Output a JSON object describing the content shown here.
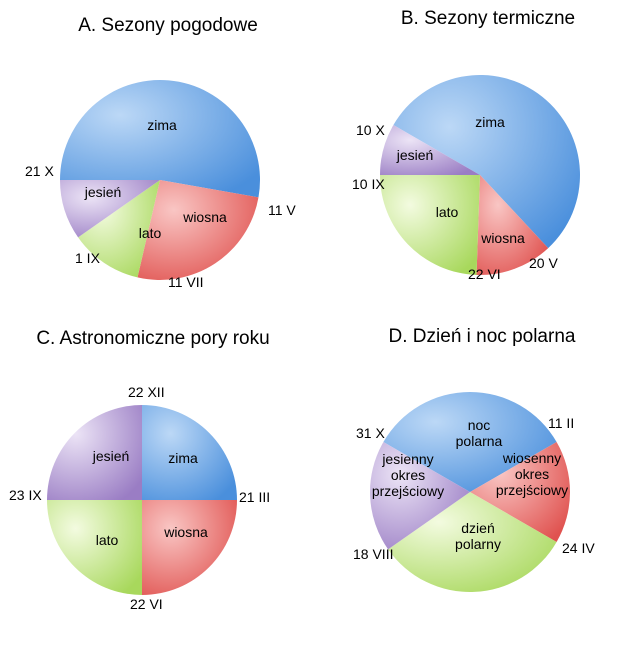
{
  "colors": {
    "zima": "#4a8fdc",
    "wiosna": "#e0524f",
    "lato": "#a8d85c",
    "jesien": "#9a7dc4"
  },
  "chart_data": [
    {
      "type": "pie",
      "title": "A. Sezony pogodowe",
      "slices": [
        {
          "key": "zima",
          "label": [
            "zima"
          ],
          "start_deg": -90,
          "end_deg": 100,
          "color_key": "zima"
        },
        {
          "key": "wiosna",
          "label": [
            "wiosna"
          ],
          "start_deg": 100,
          "end_deg": 193,
          "color_key": "wiosna"
        },
        {
          "key": "lato",
          "label": [
            "lato"
          ],
          "start_deg": 193,
          "end_deg": 235,
          "color_key": "lato"
        },
        {
          "key": "jesien",
          "label": [
            "jesień"
          ],
          "start_deg": 235,
          "end_deg": 270,
          "color_key": "jesien"
        }
      ],
      "dates": [
        "21 X",
        "11 V",
        "1 IX",
        "11 VII"
      ]
    },
    {
      "type": "pie",
      "title": "B. Sezony termiczne",
      "slices": [
        {
          "key": "zima",
          "label": [
            "zima"
          ],
          "start_deg": -60,
          "end_deg": 137,
          "color_key": "zima"
        },
        {
          "key": "wiosna",
          "label": [
            "wiosna"
          ],
          "start_deg": 137,
          "end_deg": 182,
          "color_key": "wiosna"
        },
        {
          "key": "lato",
          "label": [
            "lato"
          ],
          "start_deg": 182,
          "end_deg": 270,
          "color_key": "lato"
        },
        {
          "key": "jesien",
          "label": [
            "jesień"
          ],
          "start_deg": 270,
          "end_deg": 300,
          "color_key": "jesien"
        }
      ],
      "dates": [
        "10 X",
        "10 IX",
        "22 VI",
        "20 V"
      ]
    },
    {
      "type": "pie",
      "title": "C. Astronomiczne pory roku",
      "slices": [
        {
          "key": "zima",
          "label": [
            "zima"
          ],
          "start_deg": 0,
          "end_deg": 90,
          "color_key": "zima"
        },
        {
          "key": "wiosna",
          "label": [
            "wiosna"
          ],
          "start_deg": 90,
          "end_deg": 180,
          "color_key": "wiosna"
        },
        {
          "key": "lato",
          "label": [
            "lato"
          ],
          "start_deg": 180,
          "end_deg": 270,
          "color_key": "lato"
        },
        {
          "key": "jesien",
          "label": [
            "jesień"
          ],
          "start_deg": 270,
          "end_deg": 360,
          "color_key": "jesien"
        }
      ],
      "dates": [
        "22 XII",
        "21 III",
        "22 VI",
        "23 IX"
      ]
    },
    {
      "type": "pie",
      "title": "D. Dzień i noc polarna",
      "slices": [
        {
          "key": "noc",
          "label": [
            "noc",
            "polarna"
          ],
          "start_deg": -60,
          "end_deg": 60,
          "color_key": "zima"
        },
        {
          "key": "wiosenny",
          "label": [
            "wiosenny",
            "okres",
            "przejściowy"
          ],
          "start_deg": 60,
          "end_deg": 120,
          "color_key": "wiosna"
        },
        {
          "key": "dzien",
          "label": [
            "dzień",
            "polarny"
          ],
          "start_deg": 120,
          "end_deg": 235,
          "color_key": "lato"
        },
        {
          "key": "jesienny",
          "label": [
            "jesienny",
            "okres",
            "przejściowy"
          ],
          "start_deg": 235,
          "end_deg": 300,
          "color_key": "jesien"
        }
      ],
      "dates": [
        "31 X",
        "11 II",
        "24 IV",
        "18 VIII"
      ]
    }
  ]
}
